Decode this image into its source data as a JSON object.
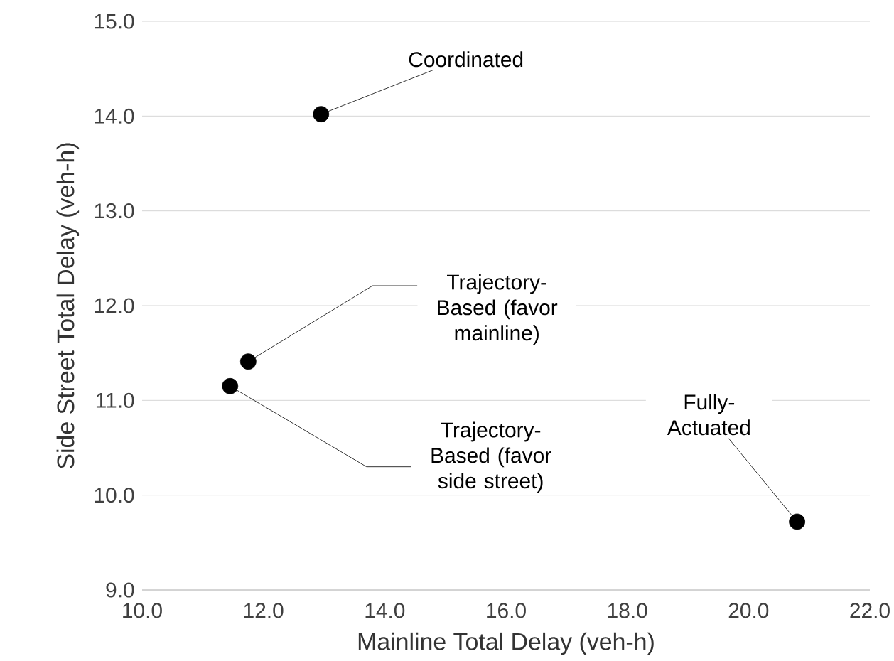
{
  "chart_data": {
    "type": "scatter",
    "xlabel": "Mainline Total Delay (veh-h)",
    "ylabel": "Side Street Total Delay (veh-h)",
    "x": [
      12.95,
      11.75,
      11.45,
      20.8
    ],
    "series": [
      {
        "color": "#000000",
        "values": [
          14.02,
          11.41,
          11.15,
          9.72
        ]
      }
    ],
    "xlim": [
      10,
      22
    ],
    "xticks": [
      {
        "value": 10,
        "label": "10.0"
      },
      {
        "value": 12,
        "label": "12.0"
      },
      {
        "value": 14,
        "label": "14.0"
      },
      {
        "value": 16,
        "label": "16.0"
      },
      {
        "value": 18,
        "label": "18.0"
      },
      {
        "value": 20,
        "label": "20.0"
      },
      {
        "value": 22,
        "label": "22.0"
      }
    ],
    "ylim": [
      9,
      15
    ],
    "yticks": [
      {
        "value": 9,
        "label": "9.0"
      },
      {
        "value": 10,
        "label": "10.0"
      },
      {
        "value": 11,
        "label": "11.0"
      },
      {
        "value": 12,
        "label": "12.0"
      },
      {
        "value": 13,
        "label": "13.0"
      },
      {
        "value": 14,
        "label": "14.0"
      },
      {
        "value": 15,
        "label": "15.0"
      }
    ],
    "grid": "y",
    "marker": "circle",
    "legend": false,
    "annotations": [
      {
        "text": "Coordinated",
        "x": 12.95,
        "y": 14.02
      },
      {
        "text": "Trajectory-Based (favor mainline)",
        "x": 11.75,
        "y": 11.41
      },
      {
        "text": "Trajectory-Based (favor side street)",
        "x": 11.45,
        "y": 11.15
      },
      {
        "text": "Fully-Actuated",
        "x": 20.8,
        "y": 9.72
      }
    ]
  }
}
